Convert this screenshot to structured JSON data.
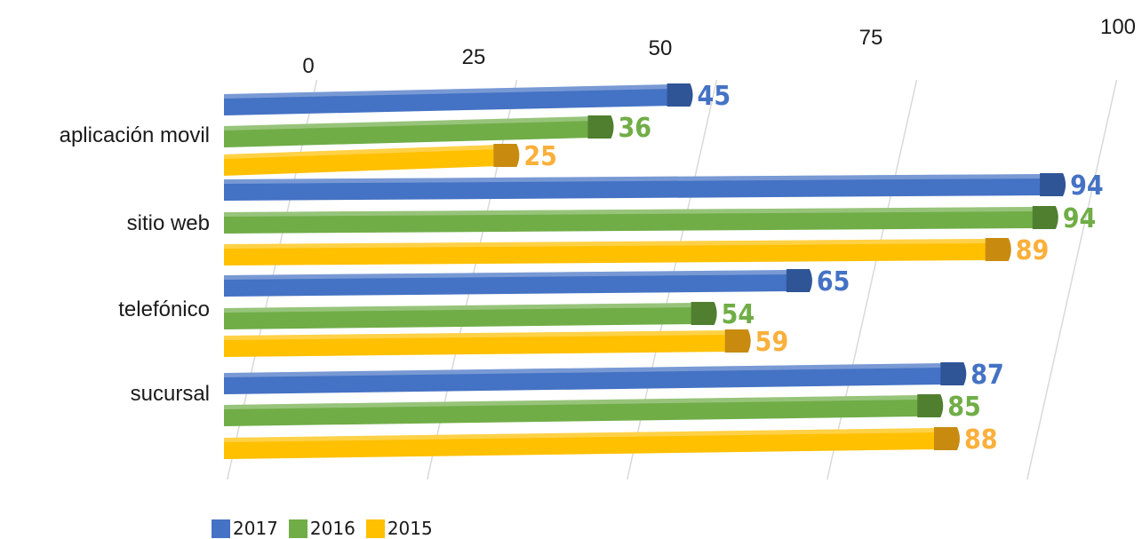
{
  "chart_data": {
    "type": "bar",
    "orientation": "horizontal",
    "categories": [
      "aplicación movil",
      "sitio web",
      "telefónico",
      "sucursal"
    ],
    "series": [
      {
        "name": "2017",
        "color": "#4472C4",
        "values": [
          45,
          94,
          65,
          87
        ]
      },
      {
        "name": "2016",
        "color": "#70AD47",
        "values": [
          36,
          94,
          54,
          85
        ]
      },
      {
        "name": "2015",
        "color": "#FFC000",
        "values": [
          25,
          89,
          59,
          88
        ]
      }
    ],
    "xlim": [
      0,
      100
    ],
    "ticks": [
      "0",
      "25",
      "50",
      "75",
      "100"
    ],
    "label_colors": {
      "2017": "#4472C4",
      "2016": "#70AD47",
      "2015": "#FBB03B"
    },
    "grid": true,
    "legend_position": "bottom-left",
    "title": "",
    "xlabel": "",
    "ylabel": ""
  }
}
